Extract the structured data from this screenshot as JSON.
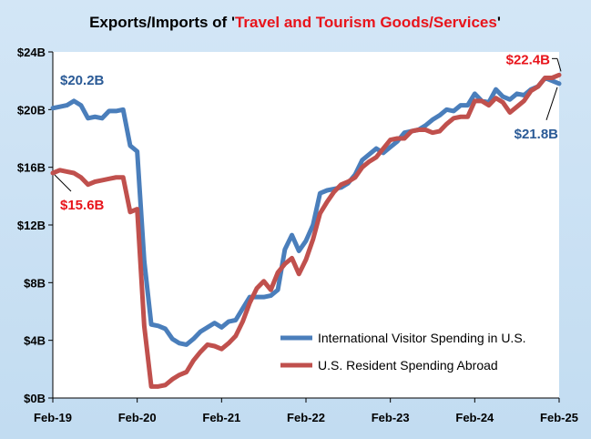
{
  "chart_data": {
    "type": "line",
    "title": {
      "prefix": "Exports/Imports of '",
      "highlight": "Travel and Tourism Goods/Services",
      "suffix": "'",
      "highlight_color": "#e8141b"
    },
    "xlabel": "",
    "ylabel": "",
    "x_ticks": [
      "Feb-19",
      "Feb-20",
      "Feb-21",
      "Feb-22",
      "Feb-23",
      "Feb-24",
      "Feb-25"
    ],
    "x_range_months": [
      0,
      72
    ],
    "y_ticks": [
      "$0B",
      "$4B",
      "$8B",
      "$12B",
      "$16B",
      "$20B",
      "$24B"
    ],
    "ylim": [
      0,
      24
    ],
    "grid": false,
    "legend_position": "bottom-right",
    "series": [
      {
        "name": "International Visitor Spending in U.S.",
        "color": "#4a7ebb",
        "values": [
          20.1,
          20.2,
          20.3,
          20.6,
          20.3,
          19.4,
          19.5,
          19.4,
          19.9,
          19.9,
          20.0,
          17.5,
          17.1,
          9.5,
          5.1,
          5.0,
          4.8,
          4.1,
          3.8,
          3.7,
          4.1,
          4.6,
          4.9,
          5.2,
          4.9,
          5.3,
          5.4,
          6.2,
          7.0,
          7.0,
          7.0,
          7.1,
          7.5,
          10.3,
          11.3,
          10.2,
          10.9,
          12.0,
          14.2,
          14.4,
          14.5,
          14.6,
          14.9,
          15.5,
          16.5,
          16.9,
          17.3,
          17.0,
          17.4,
          17.8,
          18.4,
          18.5,
          18.6,
          18.9,
          19.3,
          19.6,
          20.0,
          19.9,
          20.3,
          20.3,
          21.1,
          20.6,
          20.5,
          21.4,
          20.9,
          20.7,
          21.1,
          21.0,
          21.4,
          21.6,
          22.2,
          22.0,
          21.8
        ],
        "annotation": {
          "text": "$20.2B",
          "index": 1,
          "color": "#2a5a96"
        },
        "end_annotation": {
          "text": "$21.8B",
          "color": "#2a5a96"
        }
      },
      {
        "name": "U.S. Resident Spending Abroad",
        "color": "#c0504d",
        "values": [
          15.6,
          15.8,
          15.7,
          15.6,
          15.3,
          14.8,
          15.0,
          15.1,
          15.2,
          15.3,
          15.3,
          12.9,
          13.1,
          5.0,
          0.8,
          0.8,
          0.9,
          1.3,
          1.6,
          1.8,
          2.6,
          3.2,
          3.7,
          3.6,
          3.4,
          3.8,
          4.3,
          5.3,
          6.6,
          7.6,
          8.1,
          7.5,
          8.7,
          9.3,
          9.7,
          8.6,
          9.6,
          11.0,
          12.8,
          13.6,
          14.3,
          14.8,
          15.0,
          15.3,
          16.0,
          16.4,
          16.7,
          17.3,
          17.9,
          18.0,
          18.0,
          18.5,
          18.6,
          18.6,
          18.4,
          18.5,
          19.0,
          19.4,
          19.5,
          19.5,
          20.6,
          20.6,
          20.3,
          20.8,
          20.5,
          19.8,
          20.2,
          20.6,
          21.3,
          21.6,
          22.2,
          22.2,
          22.4
        ],
        "annotation": {
          "text": "$15.6B",
          "index": 0,
          "color": "#e8141b"
        },
        "end_annotation": {
          "text": "$22.4B",
          "color": "#e8141b"
        }
      }
    ]
  }
}
